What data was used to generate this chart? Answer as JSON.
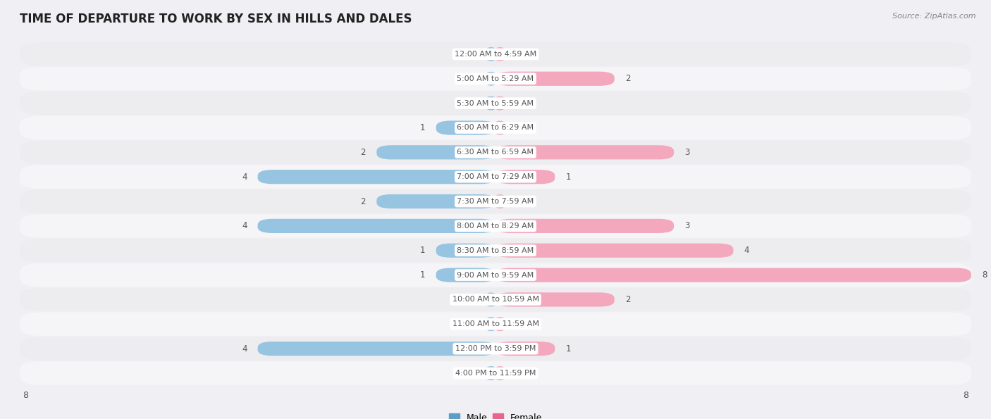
{
  "title": "TIME OF DEPARTURE TO WORK BY SEX IN HILLS AND DALES",
  "source": "Source: ZipAtlas.com",
  "categories": [
    "12:00 AM to 4:59 AM",
    "5:00 AM to 5:29 AM",
    "5:30 AM to 5:59 AM",
    "6:00 AM to 6:29 AM",
    "6:30 AM to 6:59 AM",
    "7:00 AM to 7:29 AM",
    "7:30 AM to 7:59 AM",
    "8:00 AM to 8:29 AM",
    "8:30 AM to 8:59 AM",
    "9:00 AM to 9:59 AM",
    "10:00 AM to 10:59 AM",
    "11:00 AM to 11:59 AM",
    "12:00 PM to 3:59 PM",
    "4:00 PM to 11:59 PM"
  ],
  "male": [
    0,
    0,
    0,
    1,
    2,
    4,
    2,
    4,
    1,
    1,
    0,
    0,
    4,
    0
  ],
  "female": [
    0,
    2,
    0,
    0,
    3,
    1,
    0,
    3,
    4,
    8,
    2,
    0,
    1,
    0
  ],
  "male_color": "#97c4e0",
  "male_color_dark": "#5b9ec9",
  "female_color": "#f4a8be",
  "female_color_dark": "#e8648a",
  "row_bg_odd": "#ededf0",
  "row_bg_even": "#f5f5f8",
  "fig_bg": "#f0f0f4",
  "label_color": "#555555",
  "center_label_color": "#555555",
  "title_color": "#222222",
  "source_color": "#888888",
  "xlim": 8,
  "legend_male_label": "Male",
  "legend_female_label": "Female"
}
